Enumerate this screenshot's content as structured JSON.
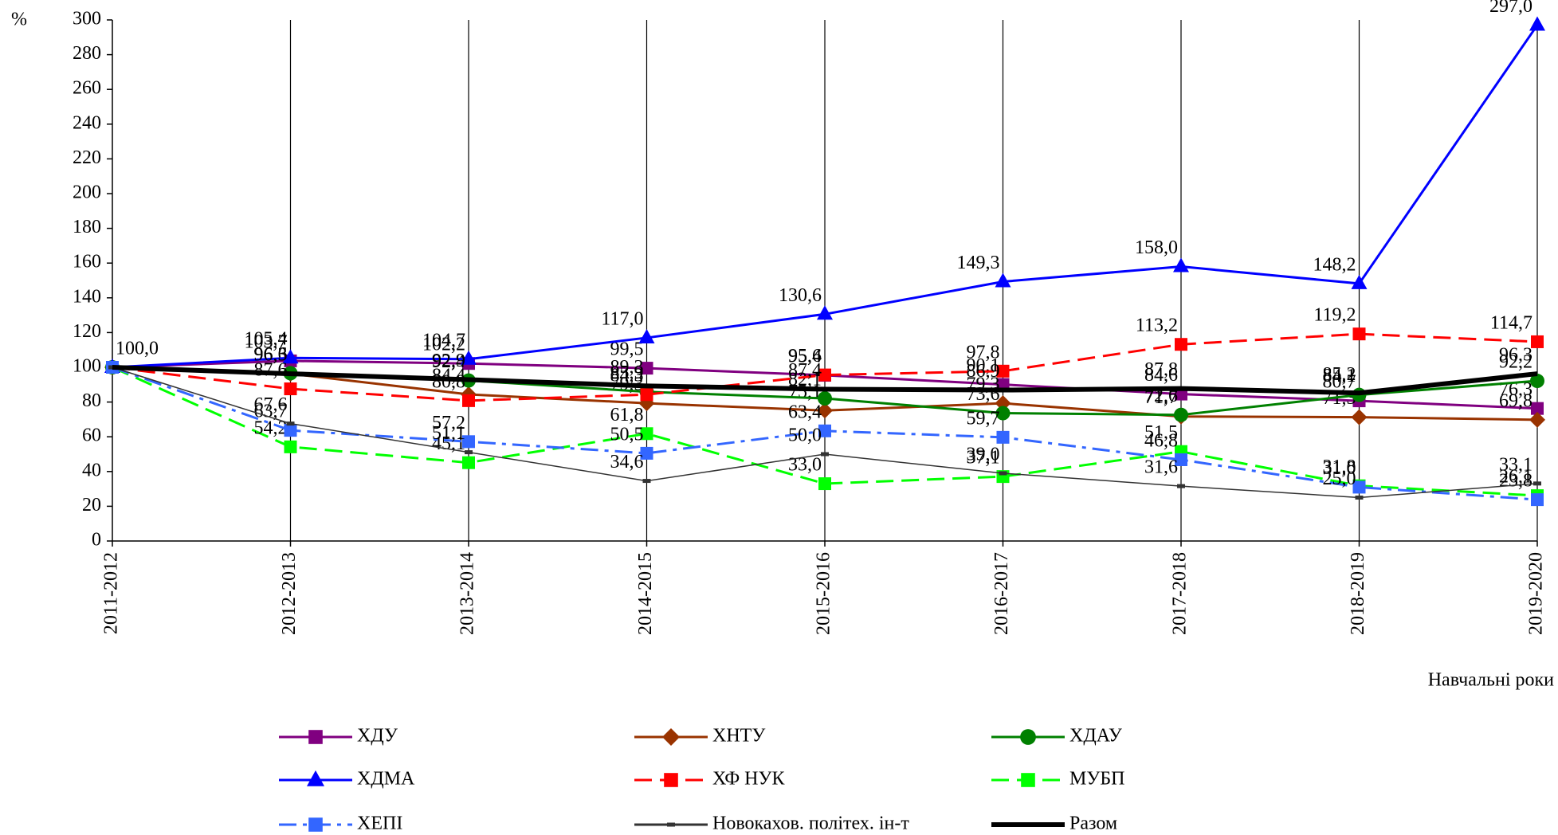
{
  "chart_data": {
    "type": "line",
    "y_unit": "%",
    "x_label": "Навчальні роки",
    "categories": [
      "2011-2012",
      "2012-2013",
      "2013-2014",
      "2014-2015",
      "2015-2016",
      "2016-2017",
      "2017-2018",
      "2018-2019",
      "2019-2020"
    ],
    "ylim": [
      0,
      300
    ],
    "yticks": [
      0,
      20,
      40,
      60,
      80,
      100,
      120,
      140,
      160,
      180,
      200,
      220,
      240,
      260,
      280,
      300
    ],
    "series": [
      {
        "name": "ХДУ",
        "color": "#800080",
        "marker": "square",
        "dash": "solid",
        "width": 3,
        "values": [
          100,
          103.7,
          102.2,
          99.5,
          95.4,
          90.1,
          84.6,
          80.7,
          76.3
        ],
        "value_labels": [
          "100,0",
          "103,7",
          "102,2",
          "99,5",
          "95,4",
          "90,1",
          "84,6",
          "80,7",
          "76,3"
        ]
      },
      {
        "name": "ХНТУ",
        "color": "#993300",
        "marker": "diamond",
        "dash": "solid",
        "width": 3,
        "values": [
          100,
          96.3,
          84.4,
          79.3,
          75.1,
          79.3,
          71.7,
          71.3,
          69.8
        ],
        "value_labels": [
          "100,0",
          "96,3",
          "84,4",
          "79,3",
          "75,1",
          "79,3",
          "71,7",
          "71,3",
          "69,8"
        ]
      },
      {
        "name": "ХДАУ",
        "color": "#008000",
        "marker": "circle",
        "dash": "solid",
        "width": 3,
        "values": [
          100,
          96.6,
          92.4,
          85.9,
          82.1,
          73.6,
          72.6,
          84.1,
          92.2
        ],
        "value_labels": [
          "100,0",
          "96,6",
          "92,4",
          "85,9",
          "82,1",
          "73,6",
          "72,6",
          "84,1",
          "92,2"
        ]
      },
      {
        "name": "ХДМА",
        "color": "#0000ff",
        "marker": "triangle",
        "dash": "solid",
        "width": 3,
        "values": [
          100,
          105.4,
          104.7,
          117.0,
          130.6,
          149.3,
          158.0,
          148.2,
          297.0
        ],
        "value_labels": [
          "100,0",
          "105,4",
          "104,7",
          "117,0",
          "130,6",
          "149,3",
          "158,0",
          "148,2",
          "297,0"
        ]
      },
      {
        "name": "ХФ НУК",
        "color": "#ff0000",
        "marker": "square",
        "dash": "dashed",
        "width": 3,
        "values": [
          100,
          87.6,
          80.8,
          84.3,
          95.6,
          97.8,
          113.2,
          119.2,
          114.7
        ],
        "value_labels": [
          "100,0",
          "87,6",
          "80,8",
          "84,3",
          "95,6",
          "97,8",
          "113,2",
          "119,2",
          "114,7"
        ]
      },
      {
        "name": "МУБП",
        "color": "#00ff00",
        "marker": "square",
        "dash": "dashed",
        "width": 3,
        "values": [
          100,
          54.2,
          45.1,
          61.8,
          33.0,
          37.1,
          51.5,
          31.8,
          26.1
        ],
        "value_labels": [
          "100,0",
          "54,2",
          "45,1",
          "61,8",
          "33,0",
          "37,1",
          "51,5",
          "31,8",
          "26,1"
        ]
      },
      {
        "name": "ХЕПІ",
        "color": "#3366ff",
        "marker": "square",
        "dash": "dashdot",
        "width": 3,
        "values": [
          100,
          63.7,
          57.2,
          50.5,
          63.4,
          59.7,
          46.8,
          31.0,
          23.8
        ],
        "value_labels": [
          "100,0",
          "63,7",
          "57,2",
          "50,5",
          "63,4",
          "59,7",
          "46,8",
          "31,0",
          "23,8"
        ]
      },
      {
        "name": "Новокахов. політех. ін-т",
        "color": "#333333",
        "marker": "dash",
        "dash": "solid",
        "width": 1.5,
        "values": [
          100,
          67.6,
          51.1,
          34.6,
          50.0,
          39.0,
          31.6,
          25.0,
          33.1
        ],
        "value_labels": [
          "100,0",
          "67,6",
          "51,1",
          "34,6",
          "50,0",
          "39,0",
          "31,6",
          "25,0",
          "33,1"
        ]
      },
      {
        "name": "Разом",
        "color": "#000000",
        "marker": "none",
        "dash": "solid",
        "width": 6,
        "values": [
          100,
          96.3,
          92.9,
          89.3,
          87.4,
          86.9,
          87.8,
          85.2,
          96.3
        ],
        "value_labels": [
          "100,0",
          "96,3",
          "92,9",
          "89,3",
          "87,4",
          "86,9",
          "87,8",
          "85,2",
          "96,3"
        ]
      }
    ]
  }
}
